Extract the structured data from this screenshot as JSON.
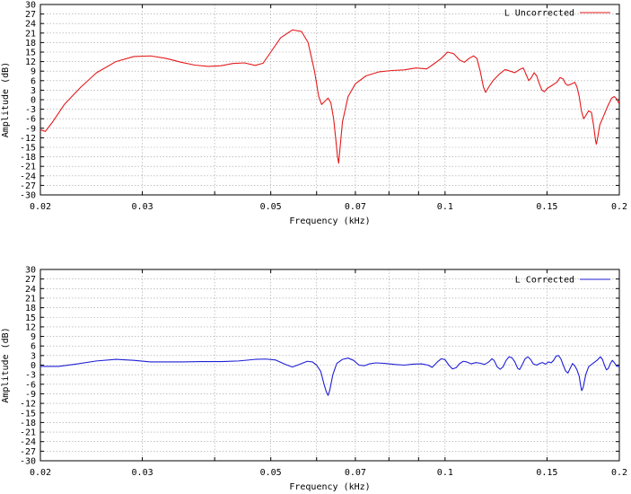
{
  "chart_data": [
    {
      "type": "line",
      "title": "",
      "xlabel": "Frequency (kHz)",
      "ylabel": "Amplitude (dB)",
      "xscale": "log",
      "xlim": [
        0.02,
        0.2
      ],
      "ylim": [
        -30,
        30
      ],
      "x_ticks": [
        "0.02",
        "0.03",
        "0.05",
        "0.07",
        "0.1",
        "0.15",
        "0.2"
      ],
      "y_ticks": [
        "30",
        "27",
        "24",
        "21",
        "18",
        "15",
        "12",
        "9",
        "6",
        "3",
        "0",
        "-3",
        "-6",
        "-9",
        "-12",
        "-15",
        "-18",
        "-21",
        "-24",
        "-27",
        "-30"
      ],
      "grid": true,
      "legend_position": "top-right",
      "series": [
        {
          "name": "L Uncorrected",
          "color": "#e41a1c",
          "points": [
            [
              0.02,
              -9.5
            ],
            [
              0.0204,
              -10
            ],
            [
              0.021,
              -7
            ],
            [
              0.022,
              -1.5
            ],
            [
              0.0235,
              4
            ],
            [
              0.025,
              8.5
            ],
            [
              0.027,
              12
            ],
            [
              0.029,
              13.6
            ],
            [
              0.031,
              13.8
            ],
            [
              0.033,
              13
            ],
            [
              0.035,
              11.8
            ],
            [
              0.037,
              10.9
            ],
            [
              0.039,
              10.5
            ],
            [
              0.041,
              10.7
            ],
            [
              0.043,
              11.4
            ],
            [
              0.045,
              11.6
            ],
            [
              0.047,
              10.8
            ],
            [
              0.0485,
              11.5
            ],
            [
              0.05,
              15
            ],
            [
              0.052,
              19.5
            ],
            [
              0.0545,
              22
            ],
            [
              0.0565,
              21.5
            ],
            [
              0.058,
              18
            ],
            [
              0.0595,
              9
            ],
            [
              0.0605,
              1
            ],
            [
              0.0612,
              -1.5
            ],
            [
              0.062,
              -0.5
            ],
            [
              0.0628,
              0.5
            ],
            [
              0.0635,
              -1
            ],
            [
              0.0642,
              -6
            ],
            [
              0.0648,
              -13
            ],
            [
              0.0652,
              -18
            ],
            [
              0.0655,
              -20
            ],
            [
              0.0658,
              -16
            ],
            [
              0.0665,
              -7
            ],
            [
              0.068,
              1
            ],
            [
              0.07,
              5
            ],
            [
              0.073,
              7.5
            ],
            [
              0.077,
              8.8
            ],
            [
              0.081,
              9.2
            ],
            [
              0.085,
              9.4
            ],
            [
              0.089,
              10
            ],
            [
              0.093,
              9.7
            ],
            [
              0.096,
              11.5
            ],
            [
              0.0985,
              13
            ],
            [
              0.101,
              15
            ],
            [
              0.1035,
              14.5
            ],
            [
              0.106,
              12.5
            ],
            [
              0.108,
              11.8
            ],
            [
              0.11,
              13
            ],
            [
              0.112,
              13.8
            ],
            [
              0.1135,
              13
            ],
            [
              0.115,
              9
            ],
            [
              0.1165,
              4
            ],
            [
              0.1175,
              2.3
            ],
            [
              0.119,
              4
            ],
            [
              0.121,
              6
            ],
            [
              0.124,
              8
            ],
            [
              0.127,
              9.5
            ],
            [
              0.1295,
              9
            ],
            [
              0.132,
              8.5
            ],
            [
              0.1345,
              9.5
            ],
            [
              0.1365,
              10
            ],
            [
              0.138,
              8
            ],
            [
              0.1395,
              6
            ],
            [
              0.141,
              7
            ],
            [
              0.1425,
              8.5
            ],
            [
              0.144,
              7.5
            ],
            [
              0.1455,
              5
            ],
            [
              0.147,
              3
            ],
            [
              0.1485,
              2.5
            ],
            [
              0.15,
              3.5
            ],
            [
              0.153,
              4.5
            ],
            [
              0.156,
              5.5
            ],
            [
              0.158,
              7
            ],
            [
              0.16,
              6.5
            ],
            [
              0.1615,
              5
            ],
            [
              0.163,
              4.5
            ],
            [
              0.1655,
              5
            ],
            [
              0.1675,
              5.5
            ],
            [
              0.169,
              4
            ],
            [
              0.1705,
              1
            ],
            [
              0.172,
              -3.5
            ],
            [
              0.1735,
              -6
            ],
            [
              0.175,
              -5
            ],
            [
              0.177,
              -3.5
            ],
            [
              0.179,
              -4
            ],
            [
              0.1805,
              -8
            ],
            [
              0.182,
              -13
            ],
            [
              0.1825,
              -14
            ],
            [
              0.1835,
              -12
            ],
            [
              0.185,
              -8
            ],
            [
              0.188,
              -5
            ],
            [
              0.191,
              -2
            ],
            [
              0.194,
              0.5
            ],
            [
              0.196,
              1
            ],
            [
              0.198,
              0.2
            ],
            [
              0.1995,
              -1
            ],
            [
              0.2,
              -0.5
            ]
          ]
        }
      ]
    },
    {
      "type": "line",
      "title": "",
      "xlabel": "Frequency (kHz)",
      "ylabel": "Amplitude (dB)",
      "xscale": "log",
      "xlim": [
        0.02,
        0.2
      ],
      "ylim": [
        -30,
        30
      ],
      "x_ticks": [
        "0.02",
        "0.03",
        "0.05",
        "0.07",
        "0.1",
        "0.15",
        "0.2"
      ],
      "y_ticks": [
        "30",
        "27",
        "24",
        "21",
        "18",
        "15",
        "12",
        "9",
        "6",
        "3",
        "0",
        "-3",
        "-6",
        "-9",
        "-12",
        "-15",
        "-18",
        "-21",
        "-24",
        "-27",
        "-30"
      ],
      "grid": true,
      "legend_position": "top-right",
      "series": [
        {
          "name": "L Corrected",
          "color": "#1f1fd6",
          "points": [
            [
              0.02,
              -0.4
            ],
            [
              0.0215,
              -0.4
            ],
            [
              0.023,
              0.3
            ],
            [
              0.025,
              1.3
            ],
            [
              0.027,
              1.8
            ],
            [
              0.029,
              1.5
            ],
            [
              0.031,
              1
            ],
            [
              0.033,
              1
            ],
            [
              0.035,
              1
            ],
            [
              0.038,
              1.1
            ],
            [
              0.041,
              1.1
            ],
            [
              0.044,
              1.3
            ],
            [
              0.047,
              1.8
            ],
            [
              0.049,
              1.9
            ],
            [
              0.051,
              1.6
            ],
            [
              0.053,
              0.2
            ],
            [
              0.0545,
              -0.6
            ],
            [
              0.056,
              0.2
            ],
            [
              0.0578,
              1.2
            ],
            [
              0.059,
              1
            ],
            [
              0.06,
              0
            ],
            [
              0.061,
              -2
            ],
            [
              0.0618,
              -6
            ],
            [
              0.0624,
              -8.5
            ],
            [
              0.0628,
              -9.5
            ],
            [
              0.0632,
              -8
            ],
            [
              0.064,
              -3
            ],
            [
              0.065,
              0.5
            ],
            [
              0.0665,
              1.8
            ],
            [
              0.068,
              2.2
            ],
            [
              0.0695,
              1.5
            ],
            [
              0.071,
              0
            ],
            [
              0.0725,
              -0.2
            ],
            [
              0.074,
              0.4
            ],
            [
              0.076,
              0.7
            ],
            [
              0.079,
              0.5
            ],
            [
              0.082,
              0.2
            ],
            [
              0.085,
              0
            ],
            [
              0.088,
              0.3
            ],
            [
              0.091,
              0.4
            ],
            [
              0.0935,
              0
            ],
            [
              0.095,
              -0.7
            ],
            [
              0.097,
              1
            ],
            [
              0.0985,
              2
            ],
            [
              0.1,
              1.7
            ],
            [
              0.1015,
              0
            ],
            [
              0.103,
              -1.2
            ],
            [
              0.1045,
              -0.8
            ],
            [
              0.106,
              0.5
            ],
            [
              0.1075,
              1.2
            ],
            [
              0.109,
              1
            ],
            [
              0.111,
              0.4
            ],
            [
              0.113,
              0.8
            ],
            [
              0.115,
              0.6
            ],
            [
              0.117,
              0.2
            ],
            [
              0.119,
              1
            ],
            [
              0.1205,
              2
            ],
            [
              0.1215,
              1.5
            ],
            [
              0.123,
              -0.5
            ],
            [
              0.1245,
              -1.3
            ],
            [
              0.126,
              -0.5
            ],
            [
              0.1275,
              1.5
            ],
            [
              0.129,
              2.6
            ],
            [
              0.1305,
              2.3
            ],
            [
              0.132,
              1
            ],
            [
              0.1335,
              -1
            ],
            [
              0.1345,
              -1.4
            ],
            [
              0.136,
              0.2
            ],
            [
              0.1375,
              2
            ],
            [
              0.139,
              2.6
            ],
            [
              0.1405,
              1.8
            ],
            [
              0.142,
              0.4
            ],
            [
              0.144,
              0
            ],
            [
              0.146,
              0.6
            ],
            [
              0.1475,
              0.8
            ],
            [
              0.149,
              0.3
            ],
            [
              0.151,
              1
            ],
            [
              0.1525,
              0.7
            ],
            [
              0.154,
              1.5
            ],
            [
              0.1555,
              2.8
            ],
            [
              0.157,
              3
            ],
            [
              0.1585,
              2
            ],
            [
              0.16,
              0
            ],
            [
              0.1615,
              -1.8
            ],
            [
              0.163,
              -2.5
            ],
            [
              0.1645,
              -1
            ],
            [
              0.166,
              0.5
            ],
            [
              0.1675,
              -0.2
            ],
            [
              0.169,
              -1.5
            ],
            [
              0.1705,
              -3.5
            ],
            [
              0.1715,
              -6.5
            ],
            [
              0.1722,
              -8
            ],
            [
              0.1732,
              -7
            ],
            [
              0.175,
              -3
            ],
            [
              0.177,
              -0.5
            ],
            [
              0.18,
              0.5
            ],
            [
              0.183,
              1.5
            ],
            [
              0.1855,
              2.6
            ],
            [
              0.187,
              1.8
            ],
            [
              0.1885,
              0
            ],
            [
              0.19,
              -1.5
            ],
            [
              0.1915,
              -1
            ],
            [
              0.193,
              0.5
            ],
            [
              0.1945,
              1.5
            ],
            [
              0.196,
              0.8
            ],
            [
              0.198,
              -0.4
            ],
            [
              0.2,
              -0.4
            ]
          ]
        }
      ]
    }
  ]
}
